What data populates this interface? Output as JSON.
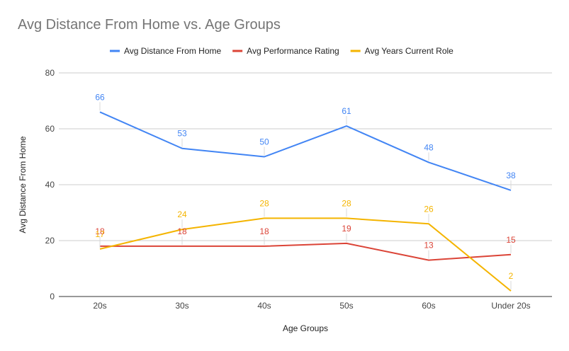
{
  "chart_data": {
    "type": "line",
    "title": "Avg Distance From Home vs. Age Groups",
    "xlabel": "Age Groups",
    "ylabel": "Avg Distance From Home",
    "categories": [
      "20s",
      "30s",
      "40s",
      "50s",
      "60s",
      "Under 20s"
    ],
    "ylim": [
      0,
      80
    ],
    "yticks": [
      0,
      20,
      40,
      60,
      80
    ],
    "grid": true,
    "legend_position": "top",
    "series": [
      {
        "name": "Avg Distance From Home",
        "color": "#4285f4",
        "values": [
          66,
          53,
          50,
          61,
          48,
          38
        ],
        "labels": [
          "66",
          "53",
          "50",
          "61",
          "48",
          "38"
        ]
      },
      {
        "name": "Avg Performance Rating",
        "color": "#db4437",
        "values": [
          18,
          18,
          18,
          19,
          13,
          15
        ],
        "labels": [
          "18",
          "18",
          "18",
          "19",
          "13",
          "15"
        ]
      },
      {
        "name": "Avg Years Current Role",
        "color": "#f4b400",
        "values": [
          17,
          24,
          28,
          28,
          26,
          2
        ],
        "labels": [
          "17",
          "24",
          "28",
          "28",
          "26",
          "2"
        ]
      }
    ]
  }
}
